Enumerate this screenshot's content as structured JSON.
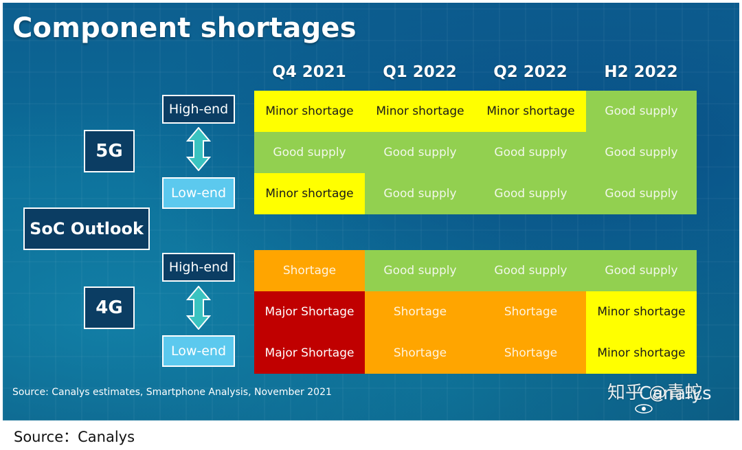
{
  "chart_data": {
    "type": "table",
    "title": "Component shortages",
    "columns": [
      "Q4 2021",
      "Q1 2022",
      "Q2 2022",
      "H2 2022"
    ],
    "row_header": "SoC Outlook",
    "groups": [
      {
        "label": "5G",
        "rows": [
          {
            "label": "High-end",
            "values": [
              "Minor shortage",
              "Minor shortage",
              "Minor shortage",
              "Good supply"
            ]
          },
          {
            "label": "Low-end",
            "values": [
              "Minor shortage",
              "Good supply",
              "Good supply",
              "Good supply"
            ]
          }
        ],
        "between_row": [
          "Good supply",
          "Good supply",
          "Good supply",
          "Good supply"
        ]
      },
      {
        "label": "4G",
        "rows": [
          {
            "label": "High-end",
            "values": [
              "Shortage",
              "Good supply",
              "Good supply",
              "Good supply"
            ]
          },
          {
            "label": "Low-end",
            "values": [
              "Major Shortage",
              "Shortage",
              "Shortage",
              "Minor shortage"
            ]
          }
        ],
        "between_row": [
          "Major Shortage",
          "Shortage",
          "Shortage",
          "Minor shortage"
        ]
      }
    ],
    "status_colors": {
      "Good supply": "#92d050",
      "Minor shortage": "#ffff00",
      "Shortage": "#ffa500",
      "Major Shortage": "#c00000"
    }
  },
  "source_note": "Source: Canalys estimates, Smartphone Analysis, November 2021",
  "brand": "Canalys",
  "watermark": "知乎 @青蛇",
  "caption": "Source：Canalys"
}
